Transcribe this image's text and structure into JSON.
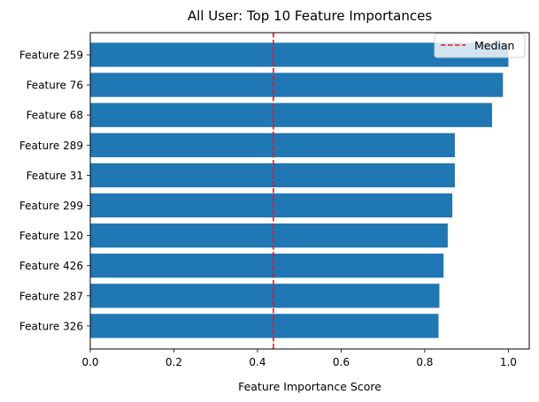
{
  "chart_data": {
    "type": "bar",
    "orientation": "horizontal",
    "title": "All User: Top 10 Feature Importances",
    "xlabel": "Feature Importance Score",
    "ylabel": "",
    "xlim": [
      0,
      1.05
    ],
    "xticks": [
      0.0,
      0.2,
      0.4,
      0.6,
      0.8,
      1.0
    ],
    "xtick_labels": [
      "0.0",
      "0.2",
      "0.4",
      "0.6",
      "0.8",
      "1.0"
    ],
    "categories": [
      "Feature 259",
      "Feature 76",
      "Feature 68",
      "Feature 289",
      "Feature 31",
      "Feature 299",
      "Feature 120",
      "Feature 426",
      "Feature 287",
      "Feature 326"
    ],
    "values": [
      1.0,
      0.987,
      0.961,
      0.872,
      0.872,
      0.866,
      0.855,
      0.845,
      0.835,
      0.833
    ],
    "bar_color": "#1f77b4",
    "reference_line": {
      "label": "Median",
      "value": 0.438,
      "color": "#e41a1c",
      "style": "dashed"
    },
    "legend": {
      "position": "top-right",
      "entries": [
        "Median"
      ]
    },
    "grid": false
  }
}
